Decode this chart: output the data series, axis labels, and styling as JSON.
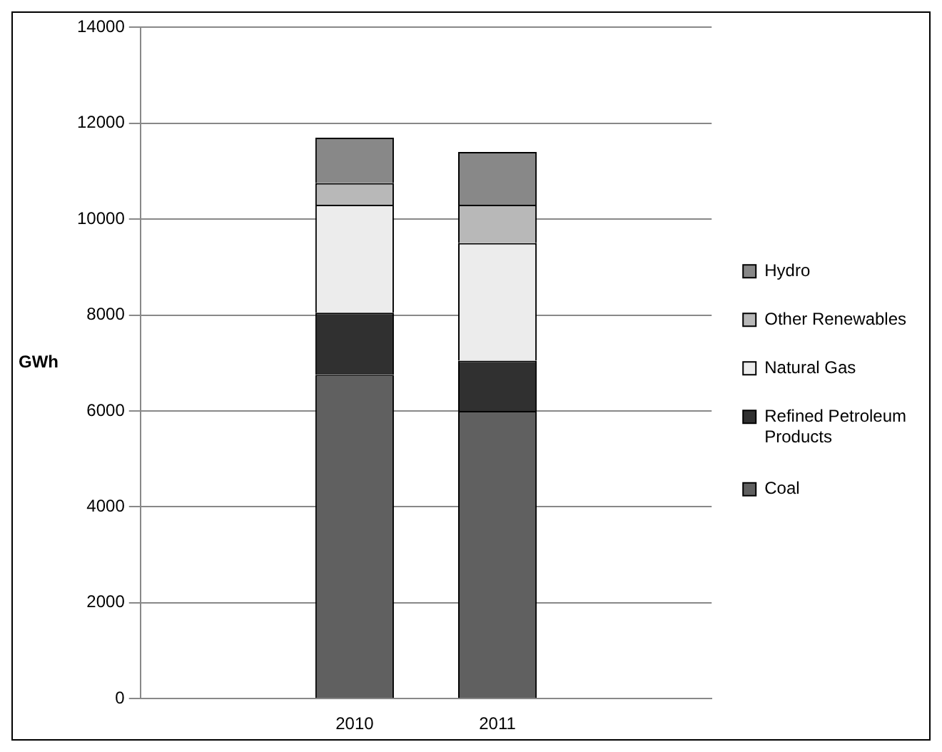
{
  "chart_data": {
    "type": "bar",
    "stacked": true,
    "ylabel": "GWh",
    "categories": [
      null,
      "2010",
      "2011",
      null
    ],
    "series": [
      {
        "name": "Coal",
        "color": "#606060",
        "values": [
          null,
          6750,
          6000,
          0
        ]
      },
      {
        "name": "Refined Petroleum Products",
        "color": "#303030",
        "values": [
          null,
          1300,
          1050,
          0
        ]
      },
      {
        "name": "Natural Gas",
        "color": "#ececec",
        "values": [
          null,
          2250,
          2450,
          0
        ]
      },
      {
        "name": "Other Renewables",
        "color": "#b8b8b8",
        "values": [
          null,
          450,
          800,
          0
        ]
      },
      {
        "name": "Hydro",
        "color": "#888888",
        "values": [
          null,
          950,
          1100,
          0
        ]
      }
    ],
    "ylim": [
      0,
      14000
    ],
    "yticks": [
      0,
      2000,
      4000,
      6000,
      8000,
      10000,
      12000,
      14000
    ],
    "grid": "y",
    "legend": "right"
  }
}
